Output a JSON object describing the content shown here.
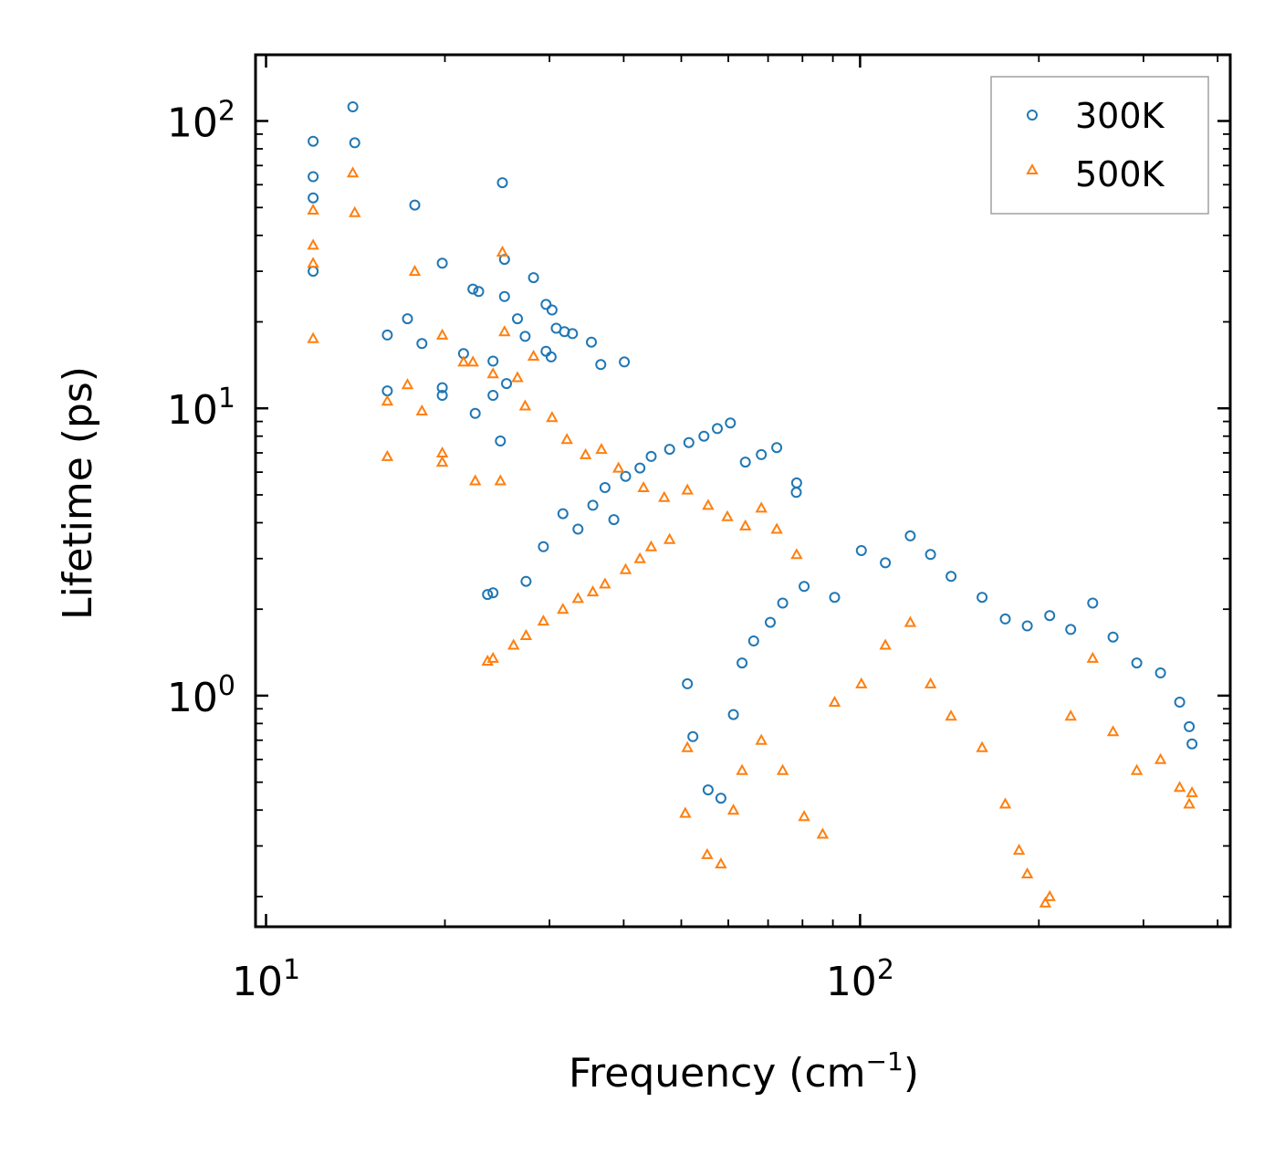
{
  "chart_data": {
    "type": "scatter",
    "title": "",
    "xlabel": "Frequency (cm",
    "xlabel_sup": "−1",
    "xlabel_end": ")",
    "ylabel": "Lifetime (ps)",
    "xscale": "log",
    "yscale": "log",
    "xlim": [
      9.6,
      420
    ],
    "ylim": [
      0.157,
      170
    ],
    "x_ticks": [
      {
        "value": 10,
        "base": "10",
        "exp": "1"
      },
      {
        "value": 100,
        "base": "10",
        "exp": "2"
      }
    ],
    "y_ticks": [
      {
        "value": 1,
        "base": "10",
        "exp": "0"
      },
      {
        "value": 10,
        "base": "10",
        "exp": "1"
      },
      {
        "value": 100,
        "base": "10",
        "exp": "2"
      }
    ],
    "legend_position": "top-right",
    "series": [
      {
        "name": "300K",
        "marker": "circle",
        "color": "#1f77b4",
        "points": [
          [
            12,
            85
          ],
          [
            12,
            64
          ],
          [
            12,
            54
          ],
          [
            12,
            30
          ],
          [
            14,
            112
          ],
          [
            14.1,
            84
          ],
          [
            17.8,
            51
          ],
          [
            25,
            61
          ],
          [
            16,
            18
          ],
          [
            16,
            11.5
          ],
          [
            17.3,
            20.5
          ],
          [
            18.3,
            16.8
          ],
          [
            19.8,
            32
          ],
          [
            19.8,
            11.8
          ],
          [
            19.8,
            11.1
          ],
          [
            21.5,
            15.5
          ],
          [
            22.3,
            26
          ],
          [
            22.8,
            25.5
          ],
          [
            22.5,
            9.6
          ],
          [
            24.1,
            14.6
          ],
          [
            24.8,
            7.7
          ],
          [
            25.2,
            24.5
          ],
          [
            25.2,
            33
          ],
          [
            26.5,
            20.5
          ],
          [
            27.3,
            17.8
          ],
          [
            28.2,
            28.5
          ],
          [
            29.6,
            23
          ],
          [
            30.3,
            22
          ],
          [
            30.8,
            19
          ],
          [
            31.8,
            18.5
          ],
          [
            32.8,
            18.2
          ],
          [
            35.3,
            17
          ],
          [
            36.6,
            14.2
          ],
          [
            40.1,
            14.5
          ],
          [
            29.6,
            15.8
          ],
          [
            30.2,
            15.1
          ],
          [
            24.1,
            11.1
          ],
          [
            25.4,
            12.2
          ],
          [
            23.6,
            2.25
          ],
          [
            24.1,
            2.28
          ],
          [
            27.4,
            2.5
          ],
          [
            29.3,
            3.3
          ],
          [
            31.6,
            4.3
          ],
          [
            33.5,
            3.8
          ],
          [
            35.5,
            4.6
          ],
          [
            37.2,
            5.3
          ],
          [
            38.5,
            4.1
          ],
          [
            40.3,
            5.8
          ],
          [
            42.6,
            6.2
          ],
          [
            44.5,
            6.8
          ],
          [
            47.8,
            7.2
          ],
          [
            51.5,
            7.6
          ],
          [
            54.6,
            8.0
          ],
          [
            57.5,
            8.5
          ],
          [
            60.5,
            8.9
          ],
          [
            64.1,
            6.5
          ],
          [
            68.2,
            6.9
          ],
          [
            72.4,
            7.3
          ],
          [
            78.2,
            5.5
          ],
          [
            78.1,
            5.1
          ],
          [
            51.2,
            1.1
          ],
          [
            52.3,
            0.72
          ],
          [
            55.5,
            0.47
          ],
          [
            58.3,
            0.44
          ],
          [
            61.2,
            0.86
          ],
          [
            63.3,
            1.3
          ],
          [
            66.2,
            1.55
          ],
          [
            70.6,
            1.8
          ],
          [
            74.1,
            2.1
          ],
          [
            80.5,
            2.4
          ],
          [
            90.6,
            2.2
          ],
          [
            100.5,
            3.2
          ],
          [
            110.3,
            2.9
          ],
          [
            121.5,
            3.6
          ],
          [
            131.4,
            3.1
          ],
          [
            142.3,
            2.6
          ],
          [
            160.5,
            2.2
          ],
          [
            175.6,
            1.85
          ],
          [
            191.2,
            1.75
          ],
          [
            208.6,
            1.9
          ],
          [
            226.3,
            1.7
          ],
          [
            246.4,
            2.1
          ],
          [
            266.7,
            1.6
          ],
          [
            292.4,
            1.3
          ],
          [
            320.5,
            1.2
          ],
          [
            345.2,
            0.95
          ],
          [
            358.3,
            0.78
          ],
          [
            362.1,
            0.68
          ]
        ]
      },
      {
        "name": "500K",
        "marker": "triangle",
        "color": "#ff7f0e",
        "points": [
          [
            12,
            49
          ],
          [
            12,
            37
          ],
          [
            12,
            32
          ],
          [
            12,
            17.5
          ],
          [
            14,
            66
          ],
          [
            14.1,
            48
          ],
          [
            17.8,
            30
          ],
          [
            25,
            35
          ],
          [
            16,
            10.6
          ],
          [
            16,
            6.8
          ],
          [
            17.3,
            12.1
          ],
          [
            18.3,
            9.8
          ],
          [
            19.8,
            18
          ],
          [
            19.8,
            7.0
          ],
          [
            19.8,
            6.5
          ],
          [
            21.5,
            14.5
          ],
          [
            22.3,
            14.5
          ],
          [
            22.5,
            5.6
          ],
          [
            24.1,
            13.2
          ],
          [
            24.8,
            5.6
          ],
          [
            25.2,
            18.5
          ],
          [
            26.5,
            12.8
          ],
          [
            27.3,
            10.2
          ],
          [
            28.2,
            15.2
          ],
          [
            23.6,
            1.32
          ],
          [
            24.1,
            1.35
          ],
          [
            26.1,
            1.5
          ],
          [
            27.4,
            1.62
          ],
          [
            29.3,
            1.82
          ],
          [
            31.6,
            2.0
          ],
          [
            33.5,
            2.18
          ],
          [
            35.5,
            2.3
          ],
          [
            37.2,
            2.45
          ],
          [
            40.3,
            2.75
          ],
          [
            42.6,
            3.0
          ],
          [
            44.5,
            3.3
          ],
          [
            47.8,
            3.5
          ],
          [
            30.3,
            9.3
          ],
          [
            32.1,
            7.8
          ],
          [
            34.5,
            6.9
          ],
          [
            36.7,
            7.2
          ],
          [
            39.2,
            6.2
          ],
          [
            43.2,
            5.3
          ],
          [
            46.8,
            4.9
          ],
          [
            51.2,
            5.2
          ],
          [
            55.5,
            4.6
          ],
          [
            59.8,
            4.2
          ],
          [
            64.1,
            3.9
          ],
          [
            68.2,
            4.5
          ],
          [
            72.4,
            3.8
          ],
          [
            78.2,
            3.1
          ],
          [
            50.8,
            0.39
          ],
          [
            51.2,
            0.66
          ],
          [
            55.3,
            0.28
          ],
          [
            58.3,
            0.26
          ],
          [
            61.2,
            0.4
          ],
          [
            63.3,
            0.55
          ],
          [
            68.2,
            0.7
          ],
          [
            74.1,
            0.55
          ],
          [
            80.5,
            0.38
          ],
          [
            86.5,
            0.33
          ],
          [
            90.6,
            0.95
          ],
          [
            100.5,
            1.1
          ],
          [
            110.3,
            1.5
          ],
          [
            121.5,
            1.8
          ],
          [
            131.4,
            1.1
          ],
          [
            142.3,
            0.85
          ],
          [
            160.5,
            0.66
          ],
          [
            175.6,
            0.42
          ],
          [
            185.2,
            0.29
          ],
          [
            191.2,
            0.24
          ],
          [
            205.1,
            0.19
          ],
          [
            208.6,
            0.2
          ],
          [
            226.3,
            0.85
          ],
          [
            246.4,
            1.35
          ],
          [
            266.7,
            0.75
          ],
          [
            292.4,
            0.55
          ],
          [
            320.5,
            0.6
          ],
          [
            345.2,
            0.48
          ],
          [
            358.3,
            0.42
          ],
          [
            362.1,
            0.46
          ]
        ]
      }
    ]
  }
}
